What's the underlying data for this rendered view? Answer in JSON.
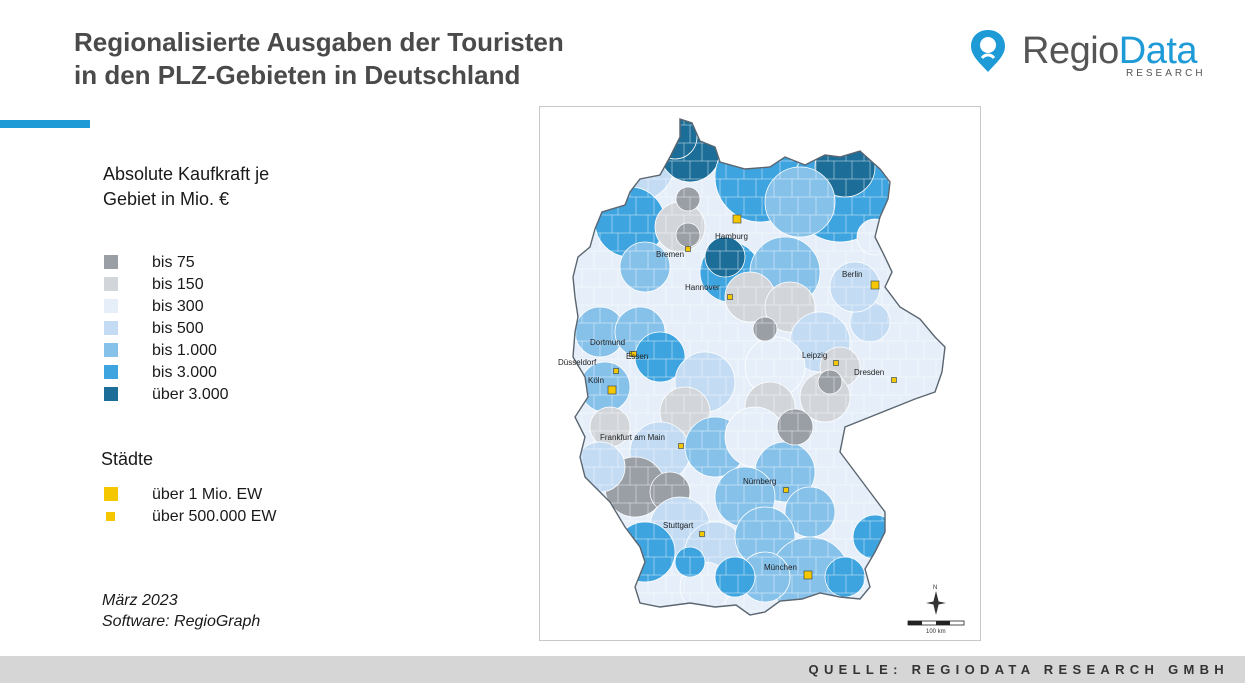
{
  "title": {
    "line1": "Regionalisierte Ausgaben der Touristen",
    "line2": "in den PLZ-Gebieten in Deutschland"
  },
  "logo": {
    "main": "Regio",
    "accent": "Data",
    "sub": "RESEARCH"
  },
  "legend": {
    "title_line1": "Absolute Kaufkraft je",
    "title_line2": "Gebiet in Mio. €",
    "classes": [
      {
        "label": "bis 75",
        "color": "#9a9ea5"
      },
      {
        "label": "bis 150",
        "color": "#d2d5da"
      },
      {
        "label": "bis 300",
        "color": "#e6eff9"
      },
      {
        "label": "bis 500",
        "color": "#c3dcf3"
      },
      {
        "label": "bis 1.000",
        "color": "#86c1ea"
      },
      {
        "label": "bis 3.000",
        "color": "#3ea4e0"
      },
      {
        "label": "über 3.000",
        "color": "#1c6e98"
      }
    ]
  },
  "cities_legend": {
    "title": "Städte",
    "items": [
      {
        "label": "über 1 Mio. EW",
        "color": "#f5c700"
      },
      {
        "label": "über 500.000 EW",
        "color": "#f5c700"
      }
    ]
  },
  "meta": {
    "date": "März 2023",
    "software": "Software: RegioGraph"
  },
  "map": {
    "cities": [
      {
        "name": "Hamburg",
        "size": "large"
      },
      {
        "name": "Bremen",
        "size": "small"
      },
      {
        "name": "Hannover",
        "size": "small"
      },
      {
        "name": "Berlin",
        "size": "large"
      },
      {
        "name": "Dortmund",
        "size": "small"
      },
      {
        "name": "Essen",
        "size": "small"
      },
      {
        "name": "Düsseldorf",
        "size": "small"
      },
      {
        "name": "Köln",
        "size": "large"
      },
      {
        "name": "Leipzig",
        "size": "small"
      },
      {
        "name": "Dresden",
        "size": "small"
      },
      {
        "name": "Frankfurt am Main",
        "size": "small"
      },
      {
        "name": "Nürnberg",
        "size": "small"
      },
      {
        "name": "Stuttgart",
        "size": "small"
      },
      {
        "name": "München",
        "size": "large"
      }
    ],
    "scale_label": "100 km",
    "north_label": "N"
  },
  "footer": {
    "source": "QUELLE: REGIODATA RESEARCH GMBH"
  }
}
